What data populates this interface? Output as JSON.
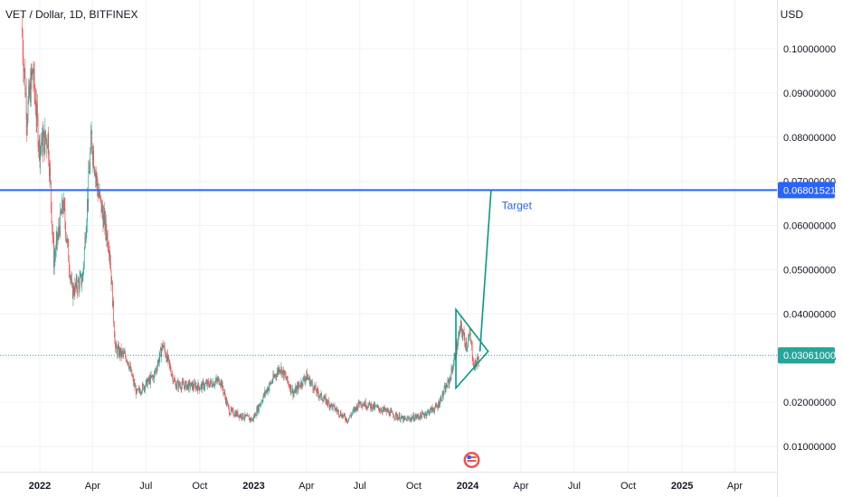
{
  "header": {
    "symbol": "VET / Dollar, 1D, BITFINEX",
    "currency": "USD"
  },
  "colors": {
    "up": "#26a69a",
    "down": "#ef5350",
    "target_line": "#2962ff",
    "current_price_tag": "#26a69a",
    "annotation": "#089981",
    "text": "#131722"
  },
  "chart_data": {
    "type": "candlestick",
    "title": "VET / Dollar, 1D, BITFINEX",
    "ylabel": "USD",
    "ylim": [
      0.005,
      0.108
    ],
    "y_ticks": [
      "0.01000000",
      "0.02000000",
      "0.03000000",
      "0.04000000",
      "0.05000000",
      "0.06000000",
      "0.07000000",
      "0.08000000",
      "0.09000000",
      "0.10000000"
    ],
    "x_ticks": [
      "2022",
      "Apr",
      "Jul",
      "Oct",
      "2023",
      "Apr",
      "Jul",
      "Oct",
      "2024",
      "Apr",
      "Jul",
      "Oct",
      "2025",
      "Apr"
    ],
    "x_tick_dates": [
      "2022-01-01",
      "2022-04-01",
      "2022-07-01",
      "2022-10-01",
      "2023-01-01",
      "2023-04-01",
      "2023-07-01",
      "2023-10-01",
      "2024-01-01",
      "2024-04-01",
      "2024-07-01",
      "2024-10-01",
      "2025-01-01",
      "2025-04-01"
    ],
    "price_keypoints": [
      {
        "date": "2021-12-01",
        "price": 0.105
      },
      {
        "date": "2021-12-10",
        "price": 0.085
      },
      {
        "date": "2021-12-20",
        "price": 0.095
      },
      {
        "date": "2021-12-31",
        "price": 0.078
      },
      {
        "date": "2022-01-15",
        "price": 0.08
      },
      {
        "date": "2022-01-25",
        "price": 0.052
      },
      {
        "date": "2022-02-10",
        "price": 0.065
      },
      {
        "date": "2022-02-25",
        "price": 0.045
      },
      {
        "date": "2022-03-15",
        "price": 0.048
      },
      {
        "date": "2022-03-30",
        "price": 0.08
      },
      {
        "date": "2022-04-10",
        "price": 0.068
      },
      {
        "date": "2022-04-30",
        "price": 0.055
      },
      {
        "date": "2022-05-10",
        "price": 0.032
      },
      {
        "date": "2022-05-30",
        "price": 0.03
      },
      {
        "date": "2022-06-15",
        "price": 0.022
      },
      {
        "date": "2022-07-15",
        "price": 0.026
      },
      {
        "date": "2022-07-30",
        "price": 0.033
      },
      {
        "date": "2022-08-20",
        "price": 0.024
      },
      {
        "date": "2022-10-01",
        "price": 0.0235
      },
      {
        "date": "2022-11-05",
        "price": 0.025
      },
      {
        "date": "2022-11-20",
        "price": 0.018
      },
      {
        "date": "2022-12-30",
        "price": 0.016
      },
      {
        "date": "2023-01-20",
        "price": 0.022
      },
      {
        "date": "2023-02-15",
        "price": 0.028
      },
      {
        "date": "2023-03-10",
        "price": 0.022
      },
      {
        "date": "2023-04-01",
        "price": 0.026
      },
      {
        "date": "2023-04-20",
        "price": 0.022
      },
      {
        "date": "2023-06-10",
        "price": 0.016
      },
      {
        "date": "2023-07-01",
        "price": 0.02
      },
      {
        "date": "2023-08-15",
        "price": 0.018
      },
      {
        "date": "2023-09-15",
        "price": 0.016
      },
      {
        "date": "2023-10-15",
        "price": 0.017
      },
      {
        "date": "2023-11-10",
        "price": 0.019
      },
      {
        "date": "2023-12-01",
        "price": 0.025
      },
      {
        "date": "2023-12-10",
        "price": 0.03
      },
      {
        "date": "2023-12-20",
        "price": 0.037
      },
      {
        "date": "2023-12-30",
        "price": 0.033
      },
      {
        "date": "2024-01-05",
        "price": 0.035
      },
      {
        "date": "2024-01-12",
        "price": 0.028
      },
      {
        "date": "2024-01-20",
        "price": 0.03
      }
    ],
    "horizontal_lines": [
      {
        "name": "target",
        "price": 0.06801521,
        "label": "0.06801521"
      }
    ],
    "current_price": {
      "price": 0.03061,
      "label": "0.03061000"
    },
    "drawings": {
      "triangle": [
        {
          "date": "2023-12-12",
          "price": 0.041
        },
        {
          "date": "2024-02-05",
          "price": 0.0315
        },
        {
          "date": "2023-12-12",
          "price": 0.0232
        }
      ],
      "projection": [
        {
          "date": "2024-01-22",
          "price": 0.0315
        },
        {
          "date": "2024-02-10",
          "price": 0.068
        }
      ]
    },
    "annotations": [
      {
        "text": "Target",
        "date": "2024-02-28",
        "price": 0.0645
      }
    ],
    "grid": true
  }
}
